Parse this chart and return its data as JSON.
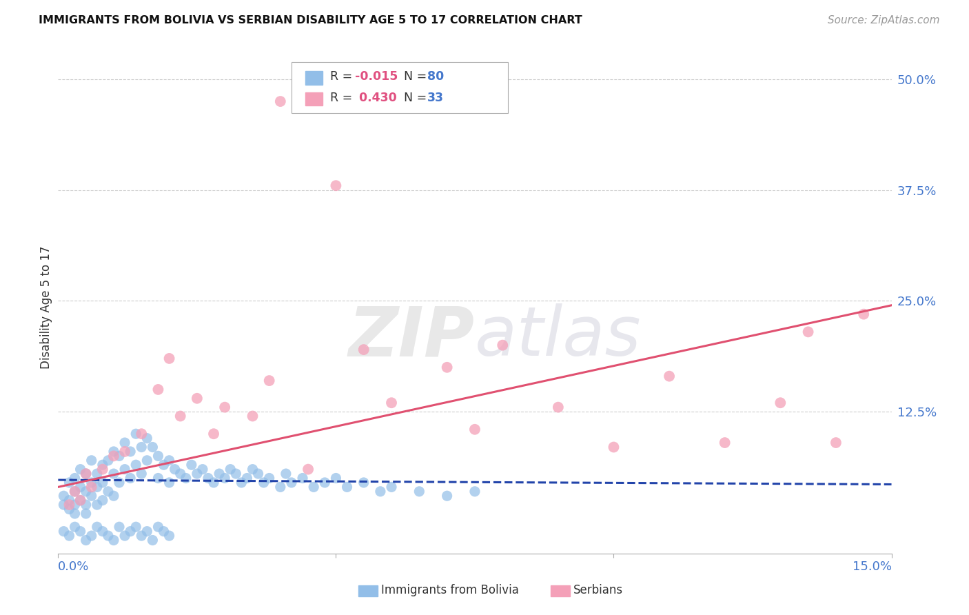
{
  "title": "IMMIGRANTS FROM BOLIVIA VS SERBIAN DISABILITY AGE 5 TO 17 CORRELATION CHART",
  "source": "Source: ZipAtlas.com",
  "ylabel": "Disability Age 5 to 17",
  "xlim": [
    0.0,
    0.15
  ],
  "ylim": [
    -0.035,
    0.52
  ],
  "color_bolivia": "#92BEE8",
  "color_serbia": "#F4A0B8",
  "line_color_bolivia": "#2244AA",
  "line_color_serbia": "#E05070",
  "grid_color": "#CCCCCC",
  "bolivia_x": [
    0.001,
    0.001,
    0.002,
    0.002,
    0.002,
    0.003,
    0.003,
    0.003,
    0.003,
    0.004,
    0.004,
    0.004,
    0.005,
    0.005,
    0.005,
    0.005,
    0.006,
    0.006,
    0.006,
    0.007,
    0.007,
    0.007,
    0.008,
    0.008,
    0.008,
    0.009,
    0.009,
    0.01,
    0.01,
    0.01,
    0.011,
    0.011,
    0.012,
    0.012,
    0.013,
    0.013,
    0.014,
    0.014,
    0.015,
    0.015,
    0.016,
    0.016,
    0.017,
    0.018,
    0.018,
    0.019,
    0.02,
    0.02,
    0.021,
    0.022,
    0.023,
    0.024,
    0.025,
    0.026,
    0.027,
    0.028,
    0.029,
    0.03,
    0.031,
    0.032,
    0.033,
    0.034,
    0.035,
    0.036,
    0.037,
    0.038,
    0.04,
    0.041,
    0.042,
    0.044,
    0.046,
    0.048,
    0.05,
    0.052,
    0.055,
    0.058,
    0.06,
    0.065,
    0.07,
    0.075
  ],
  "bolivia_y": [
    0.03,
    0.02,
    0.045,
    0.025,
    0.015,
    0.035,
    0.05,
    0.02,
    0.01,
    0.04,
    0.06,
    0.025,
    0.055,
    0.035,
    0.02,
    0.01,
    0.045,
    0.07,
    0.03,
    0.055,
    0.04,
    0.02,
    0.065,
    0.045,
    0.025,
    0.07,
    0.035,
    0.08,
    0.055,
    0.03,
    0.075,
    0.045,
    0.09,
    0.06,
    0.08,
    0.05,
    0.1,
    0.065,
    0.085,
    0.055,
    0.095,
    0.07,
    0.085,
    0.075,
    0.05,
    0.065,
    0.07,
    0.045,
    0.06,
    0.055,
    0.05,
    0.065,
    0.055,
    0.06,
    0.05,
    0.045,
    0.055,
    0.05,
    0.06,
    0.055,
    0.045,
    0.05,
    0.06,
    0.055,
    0.045,
    0.05,
    0.04,
    0.055,
    0.045,
    0.05,
    0.04,
    0.045,
    0.05,
    0.04,
    0.045,
    0.035,
    0.04,
    0.035,
    0.03,
    0.035
  ],
  "bolivia_y_below": [
    -0.01,
    -0.015,
    -0.005,
    -0.01,
    -0.02,
    -0.015,
    -0.005,
    -0.01,
    -0.015,
    -0.02,
    -0.005,
    -0.015,
    -0.01,
    -0.005,
    -0.015,
    -0.01,
    -0.02,
    -0.005,
    -0.01,
    -0.015
  ],
  "bolivia_x_below": [
    0.001,
    0.002,
    0.003,
    0.004,
    0.005,
    0.006,
    0.007,
    0.008,
    0.009,
    0.01,
    0.011,
    0.012,
    0.013,
    0.014,
    0.015,
    0.016,
    0.017,
    0.018,
    0.019,
    0.02
  ],
  "serbia_x": [
    0.002,
    0.003,
    0.004,
    0.005,
    0.006,
    0.008,
    0.01,
    0.012,
    0.015,
    0.018,
    0.02,
    0.022,
    0.025,
    0.028,
    0.03,
    0.035,
    0.038,
    0.04,
    0.045,
    0.05,
    0.055,
    0.06,
    0.07,
    0.075,
    0.08,
    0.09,
    0.1,
    0.11,
    0.12,
    0.13,
    0.135,
    0.14,
    0.145
  ],
  "serbia_y": [
    0.02,
    0.035,
    0.025,
    0.055,
    0.04,
    0.06,
    0.075,
    0.08,
    0.1,
    0.15,
    0.185,
    0.12,
    0.14,
    0.1,
    0.13,
    0.12,
    0.16,
    0.475,
    0.06,
    0.38,
    0.195,
    0.135,
    0.175,
    0.105,
    0.2,
    0.13,
    0.085,
    0.165,
    0.09,
    0.135,
    0.215,
    0.09,
    0.235
  ],
  "bolivia_line_x": [
    0.0,
    0.15
  ],
  "bolivia_line_y": [
    0.048,
    0.043
  ],
  "serbia_line_x": [
    0.0,
    0.15
  ],
  "serbia_line_y": [
    0.04,
    0.245
  ]
}
